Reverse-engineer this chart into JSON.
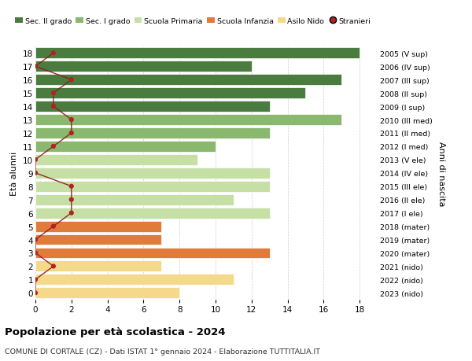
{
  "ages": [
    18,
    17,
    16,
    15,
    14,
    13,
    12,
    11,
    10,
    9,
    8,
    7,
    6,
    5,
    4,
    3,
    2,
    1,
    0
  ],
  "right_labels": [
    "2005 (V sup)",
    "2006 (IV sup)",
    "2007 (III sup)",
    "2008 (II sup)",
    "2009 (I sup)",
    "2010 (III med)",
    "2011 (II med)",
    "2012 (I med)",
    "2013 (V ele)",
    "2014 (IV ele)",
    "2015 (III ele)",
    "2016 (II ele)",
    "2017 (I ele)",
    "2018 (mater)",
    "2019 (mater)",
    "2020 (mater)",
    "2021 (nido)",
    "2022 (nido)",
    "2023 (nido)"
  ],
  "bar_values": [
    18,
    12,
    17,
    15,
    13,
    17,
    13,
    10,
    9,
    13,
    13,
    11,
    13,
    7,
    7,
    13,
    7,
    11,
    8
  ],
  "bar_colors": [
    "#4a7c3f",
    "#4a7c3f",
    "#4a7c3f",
    "#4a7c3f",
    "#4a7c3f",
    "#8ab86e",
    "#8ab86e",
    "#8ab86e",
    "#c5dfa5",
    "#c5dfa5",
    "#c5dfa5",
    "#c5dfa5",
    "#c5dfa5",
    "#e07b39",
    "#e07b39",
    "#e07b39",
    "#f5d98b",
    "#f5d98b",
    "#f5d98b"
  ],
  "stranieri_values": [
    1,
    0,
    2,
    1,
    1,
    2,
    2,
    1,
    0,
    0,
    2,
    2,
    2,
    1,
    0,
    0,
    1,
    0,
    0
  ],
  "legend_labels": [
    "Sec. II grado",
    "Sec. I grado",
    "Scuola Primaria",
    "Scuola Infanzia",
    "Asilo Nido",
    "Stranieri"
  ],
  "legend_colors": [
    "#4a7c3f",
    "#8ab86e",
    "#c5dfa5",
    "#e07b39",
    "#f5d98b",
    "#b22222"
  ],
  "ylabel_left": "Età alunni",
  "ylabel_right": "Anni di nascita",
  "title": "Popolazione per età scolastica - 2024",
  "subtitle": "COMUNE DI CORTALE (CZ) - Dati ISTAT 1° gennaio 2024 - Elaborazione TUTTITALIA.IT",
  "xlim": [
    0,
    19
  ],
  "ylim": [
    -0.5,
    18.5
  ],
  "xticks": [
    0,
    2,
    4,
    6,
    8,
    10,
    12,
    14,
    16,
    18
  ],
  "background_color": "#ffffff",
  "grid_color": "#cccccc",
  "stranieri_line_color": "#8b1a1a",
  "stranieri_dot_color": "#b22222",
  "bar_height": 0.82
}
